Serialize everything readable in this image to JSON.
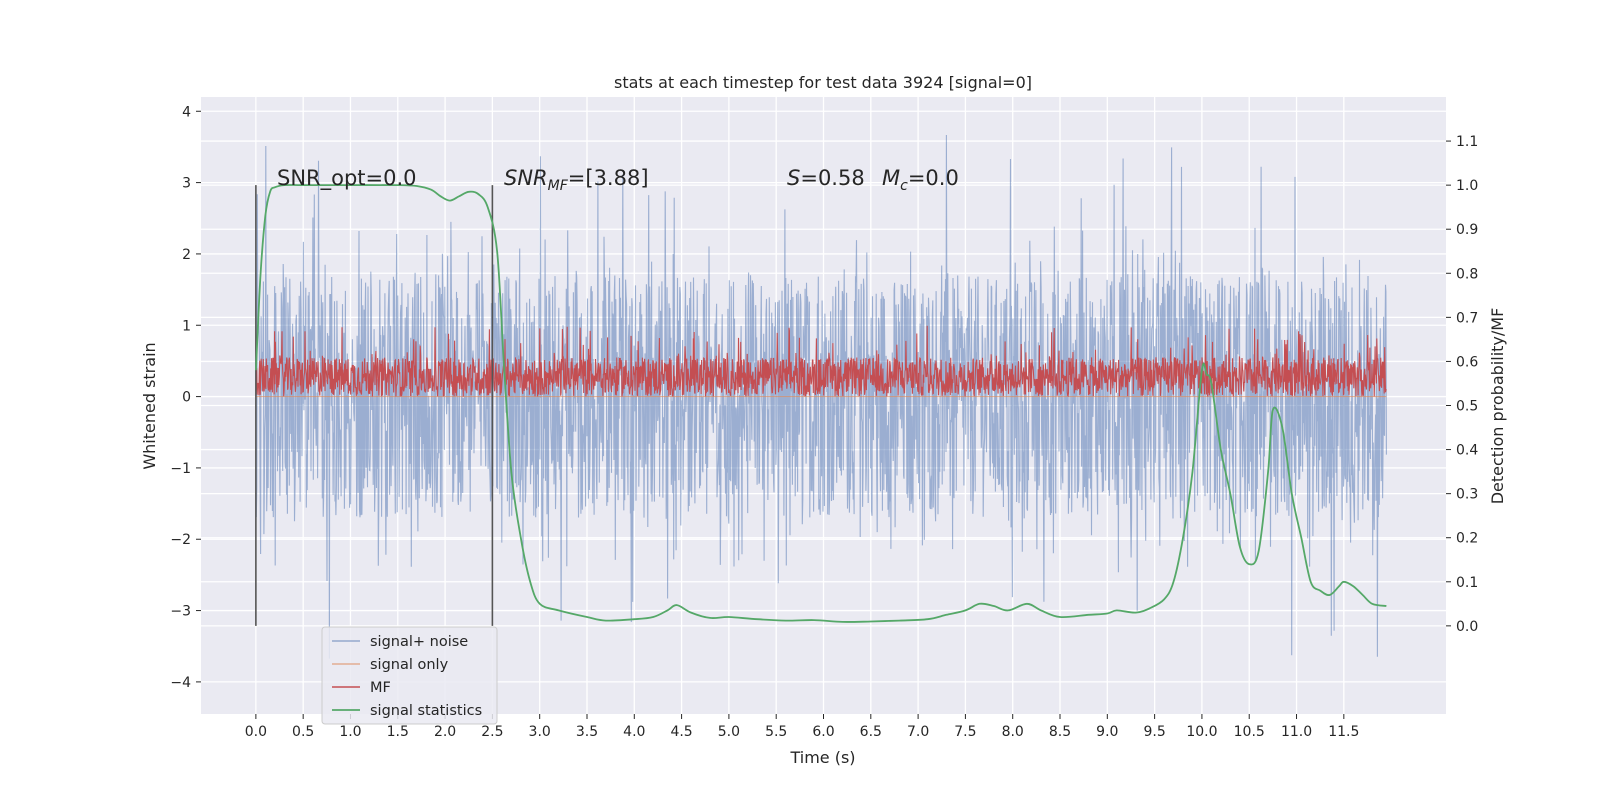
{
  "chart_data": {
    "type": "line",
    "title": "stats at each timestep for test data 3924 [signal=0]",
    "xlabel": "Time (s)",
    "ylabel_left": "Whitened strain",
    "ylabel_right": "Detection probability/MF",
    "xlim": [
      -0.58,
      12.58
    ],
    "ylim_left": [
      -4.45,
      4.2
    ],
    "ylim_right": [
      -0.2,
      1.2
    ],
    "x_ticks": [
      "0.0",
      "0.5",
      "1.0",
      "1.5",
      "2.0",
      "2.5",
      "3.0",
      "3.5",
      "4.0",
      "4.5",
      "5.0",
      "5.5",
      "6.0",
      "6.5",
      "7.0",
      "7.5",
      "8.0",
      "8.5",
      "9.0",
      "9.5",
      "10.0",
      "10.5",
      "11.0",
      "11.5"
    ],
    "y_ticks_left": [
      "−4",
      "−3",
      "−2",
      "−1",
      "0",
      "1",
      "2",
      "3",
      "4"
    ],
    "y_ticks_right": [
      "0.0",
      "0.1",
      "0.2",
      "0.3",
      "0.4",
      "0.5",
      "0.6",
      "0.7",
      "0.8",
      "0.9",
      "1.0",
      "1.1"
    ],
    "grid": true,
    "legend_location": "lower-left",
    "annotations": {
      "snr_opt": "SNR_opt=0.0",
      "snr_mf_italic": "SNR",
      "snr_mf_sub": "MF",
      "snr_mf_value": "=[3.88]",
      "s_italic": "S",
      "s_value": "=0.58",
      "mc_italic": "M",
      "mc_sub": "c",
      "mc_value": "=0.0"
    },
    "vertical_markers": [
      0.0,
      2.5
    ],
    "series": [
      {
        "name": "signal+ noise",
        "color": "#4C72B0",
        "axis": "left",
        "description_range": [
          -3.9,
          3.8
        ],
        "x_range": [
          0.0,
          11.95
        ],
        "envelope": {
          "core_upper": 1.7,
          "core_lower": -1.7,
          "peak_upper": 3.8,
          "peak_lower": -4.1
        }
      },
      {
        "name": "signal only",
        "color": "#DD8452",
        "axis": "left",
        "values_constant": 0.0
      },
      {
        "name": "MF",
        "color": "#C44E52",
        "axis": "left",
        "x_range": [
          0.0,
          11.95
        ],
        "envelope": {
          "base": 0.0,
          "core_upper": 0.55,
          "peak_upper": 1.0
        }
      },
      {
        "name": "signal statistics",
        "color": "#55A868",
        "axis": "right",
        "x": [
          0.0,
          0.05,
          0.1,
          0.15,
          0.2,
          0.3,
          0.5,
          1.0,
          1.5,
          1.7,
          1.85,
          1.95,
          2.05,
          2.15,
          2.25,
          2.35,
          2.45,
          2.55,
          2.62,
          2.7,
          2.8,
          2.9,
          3.0,
          3.2,
          3.5,
          3.7,
          4.0,
          4.2,
          4.35,
          4.45,
          4.6,
          4.8,
          5.0,
          5.3,
          5.6,
          5.9,
          6.2,
          6.5,
          6.8,
          7.1,
          7.3,
          7.5,
          7.65,
          7.8,
          7.95,
          8.15,
          8.3,
          8.5,
          8.8,
          9.0,
          9.1,
          9.3,
          9.45,
          9.6,
          9.7,
          9.8,
          9.9,
          10.0,
          10.05,
          10.1,
          10.2,
          10.3,
          10.4,
          10.5,
          10.6,
          10.7,
          10.75,
          10.85,
          10.95,
          11.05,
          11.15,
          11.25,
          11.35,
          11.45,
          11.5,
          11.6,
          11.7,
          11.8,
          11.95
        ],
        "values": [
          0.58,
          0.8,
          0.93,
          0.985,
          0.995,
          1.0,
          1.0,
          1.0,
          1.0,
          0.998,
          0.99,
          0.975,
          0.965,
          0.975,
          0.985,
          0.98,
          0.95,
          0.85,
          0.6,
          0.35,
          0.2,
          0.1,
          0.05,
          0.035,
          0.02,
          0.012,
          0.015,
          0.02,
          0.035,
          0.047,
          0.03,
          0.018,
          0.02,
          0.015,
          0.012,
          0.013,
          0.009,
          0.01,
          0.012,
          0.015,
          0.025,
          0.035,
          0.05,
          0.045,
          0.035,
          0.05,
          0.035,
          0.02,
          0.025,
          0.028,
          0.035,
          0.03,
          0.04,
          0.06,
          0.1,
          0.2,
          0.35,
          0.58,
          0.57,
          0.55,
          0.4,
          0.3,
          0.18,
          0.14,
          0.17,
          0.35,
          0.49,
          0.45,
          0.3,
          0.2,
          0.1,
          0.08,
          0.07,
          0.09,
          0.1,
          0.09,
          0.07,
          0.05,
          0.045
        ]
      }
    ]
  }
}
